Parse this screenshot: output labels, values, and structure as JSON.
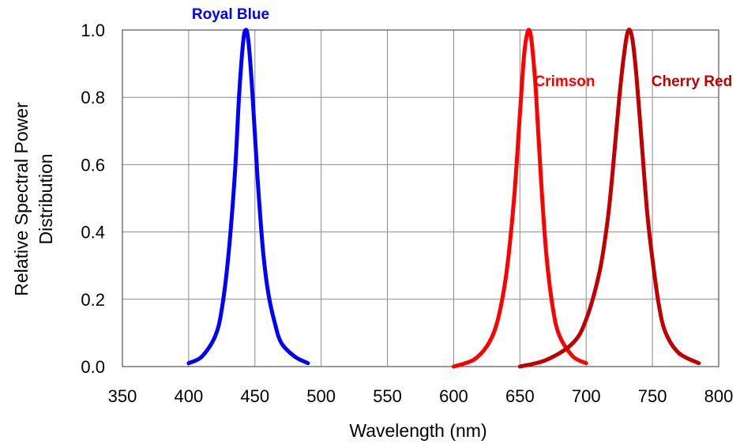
{
  "chart_data": {
    "type": "line",
    "title": "",
    "xlabel": "Wavelength (nm)",
    "ylabel_lines": [
      "Relative Spectral Power",
      "Distribution"
    ],
    "xlim": [
      350,
      800
    ],
    "ylim": [
      0,
      1.0
    ],
    "x_ticks": [
      350,
      400,
      450,
      500,
      550,
      600,
      650,
      700,
      750,
      800
    ],
    "y_ticks": [
      "0.0",
      "0.2",
      "0.4",
      "0.6",
      "0.8",
      "1.0"
    ],
    "grid": true,
    "series": [
      {
        "name": "Royal Blue",
        "color": "#0000ff",
        "x": [
          400,
          410,
          420,
          425,
          430,
          435,
          438,
          441,
          443,
          445,
          448,
          452,
          456,
          460,
          465,
          470,
          480,
          490
        ],
        "y": [
          0.01,
          0.03,
          0.09,
          0.17,
          0.33,
          0.58,
          0.8,
          0.96,
          1.0,
          0.97,
          0.82,
          0.56,
          0.35,
          0.22,
          0.13,
          0.07,
          0.03,
          0.01
        ]
      },
      {
        "name": "Crimson",
        "color": "#ff0000",
        "x": [
          600,
          615,
          625,
          632,
          638,
          642,
          646,
          650,
          653,
          655,
          657,
          659,
          662,
          666,
          670,
          675,
          680,
          690,
          700
        ],
        "y": [
          0.0,
          0.02,
          0.06,
          0.12,
          0.23,
          0.35,
          0.52,
          0.75,
          0.92,
          0.98,
          1.0,
          0.96,
          0.82,
          0.55,
          0.33,
          0.17,
          0.09,
          0.03,
          0.01
        ]
      },
      {
        "name": "Cherry Red",
        "color": "#c00000",
        "x": [
          650,
          670,
          690,
          700,
          710,
          716,
          720,
          725,
          729,
          732,
          735,
          738,
          742,
          746,
          750,
          755,
          760,
          770,
          785
        ],
        "y": [
          0.0,
          0.02,
          0.07,
          0.14,
          0.28,
          0.43,
          0.58,
          0.8,
          0.94,
          1.0,
          0.97,
          0.86,
          0.66,
          0.46,
          0.32,
          0.18,
          0.1,
          0.04,
          0.01
        ]
      }
    ],
    "annotations": [
      {
        "text": "Royal Blue",
        "series": 0
      },
      {
        "text": "Crimson",
        "series": 1
      },
      {
        "text": "Cherry Red",
        "series": 2
      }
    ]
  }
}
